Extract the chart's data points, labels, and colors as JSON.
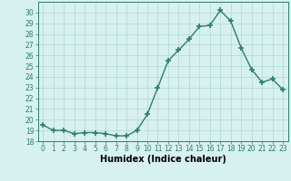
{
  "x": [
    0,
    1,
    2,
    3,
    4,
    5,
    6,
    7,
    8,
    9,
    10,
    11,
    12,
    13,
    14,
    15,
    16,
    17,
    18,
    19,
    20,
    21,
    22,
    23
  ],
  "y": [
    19.5,
    19.0,
    19.0,
    18.7,
    18.8,
    18.8,
    18.7,
    18.5,
    18.5,
    19.0,
    20.5,
    23.0,
    25.5,
    26.5,
    27.5,
    28.7,
    28.8,
    30.2,
    29.2,
    26.7,
    24.7,
    23.5,
    23.8,
    22.8
  ],
  "line_color": "#2e7d6e",
  "marker": "+",
  "markersize": 4,
  "markeredgewidth": 1.2,
  "linewidth": 1.0,
  "bg_color": "#d7f0f0",
  "grid_color": "#b0d8d0",
  "xlabel": "Humidex (Indice chaleur)",
  "ylim": [
    18,
    31
  ],
  "xlim": [
    -0.5,
    23.5
  ],
  "yticks": [
    18,
    19,
    20,
    21,
    22,
    23,
    24,
    25,
    26,
    27,
    28,
    29,
    30
  ],
  "xticks": [
    0,
    1,
    2,
    3,
    4,
    5,
    6,
    7,
    8,
    9,
    10,
    11,
    12,
    13,
    14,
    15,
    16,
    17,
    18,
    19,
    20,
    21,
    22,
    23
  ],
  "xtick_labels": [
    "0",
    "1",
    "2",
    "3",
    "4",
    "5",
    "6",
    "7",
    "8",
    "9",
    "10",
    "11",
    "12",
    "13",
    "14",
    "15",
    "16",
    "17",
    "18",
    "19",
    "20",
    "21",
    "22",
    "23"
  ],
  "tick_fontsize": 5.5,
  "xlabel_fontsize": 7.0
}
